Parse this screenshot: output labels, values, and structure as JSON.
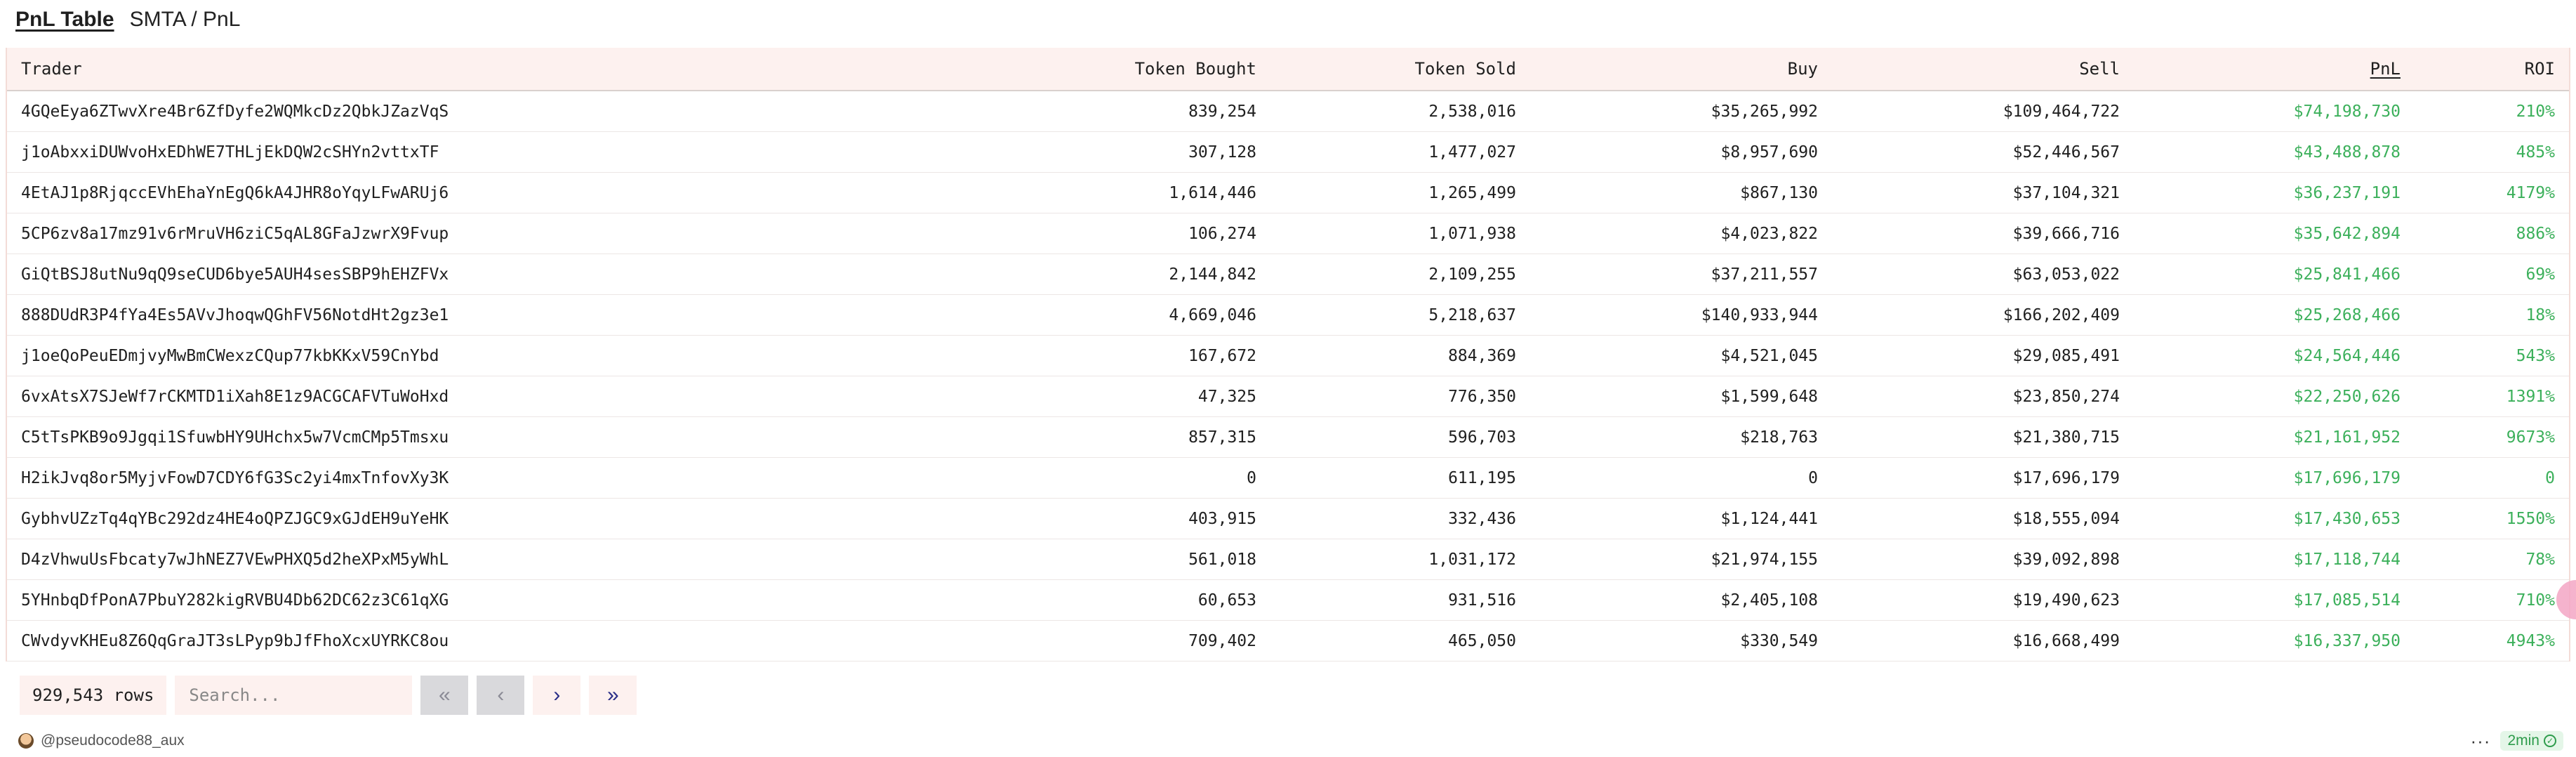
{
  "header": {
    "title": "PnL Table",
    "breadcrumb": "SMTA / PnL"
  },
  "table": {
    "columns": [
      "Trader",
      "Token Bought",
      "Token Sold",
      "Buy",
      "Sell",
      "PnL",
      "ROI"
    ],
    "rows": [
      [
        "4GQeEya6ZTwvXre4Br6ZfDyfe2WQMkcDz2QbkJZazVqS",
        "839,254",
        "2,538,016",
        "$35,265,992",
        "$109,464,722",
        "$74,198,730",
        "210%"
      ],
      [
        "j1oAbxxiDUWvoHxEDhWE7THLjEkDQW2cSHYn2vttxTF",
        "307,128",
        "1,477,027",
        "$8,957,690",
        "$52,446,567",
        "$43,488,878",
        "485%"
      ],
      [
        "4EtAJ1p8RjqccEVhEhaYnEgQ6kA4JHR8oYqyLFwARUj6",
        "1,614,446",
        "1,265,499",
        "$867,130",
        "$37,104,321",
        "$36,237,191",
        "4179%"
      ],
      [
        "5CP6zv8a17mz91v6rMruVH6ziC5qAL8GFaJzwrX9Fvup",
        "106,274",
        "1,071,938",
        "$4,023,822",
        "$39,666,716",
        "$35,642,894",
        "886%"
      ],
      [
        "GiQtBSJ8utNu9qQ9seCUD6bye5AUH4sesSBP9hEHZFVx",
        "2,144,842",
        "2,109,255",
        "$37,211,557",
        "$63,053,022",
        "$25,841,466",
        "69%"
      ],
      [
        "888DUdR3P4fYa4Es5AVvJhoqwQGhFV56NotdHt2gz3e1",
        "4,669,046",
        "5,218,637",
        "$140,933,944",
        "$166,202,409",
        "$25,268,466",
        "18%"
      ],
      [
        "j1oeQoPeuEDmjvyMwBmCWexzCQup77kbKKxV59CnYbd",
        "167,672",
        "884,369",
        "$4,521,045",
        "$29,085,491",
        "$24,564,446",
        "543%"
      ],
      [
        "6vxAtsX7SJeWf7rCKMTD1iXah8E1z9ACGCAFVTuWoHxd",
        "47,325",
        "776,350",
        "$1,599,648",
        "$23,850,274",
        "$22,250,626",
        "1391%"
      ],
      [
        "C5tTsPKB9o9Jgqi1SfuwbHY9UHchx5w7VcmCMp5Tmsxu",
        "857,315",
        "596,703",
        "$218,763",
        "$21,380,715",
        "$21,161,952",
        "9673%"
      ],
      [
        "H2ikJvq8or5MyjvFowD7CDY6fG3Sc2yi4mxTnfovXy3K",
        "0",
        "611,195",
        "0",
        "$17,696,179",
        "$17,696,179",
        "0"
      ],
      [
        "GybhvUZzTq4qYBc292dz4HE4oQPZJGC9xGJdEH9uYeHK",
        "403,915",
        "332,436",
        "$1,124,441",
        "$18,555,094",
        "$17,430,653",
        "1550%"
      ],
      [
        "D4zVhwuUsFbcaty7wJhNEZ7VEwPHXQ5d2heXPxM5yWhL",
        "561,018",
        "1,031,172",
        "$21,974,155",
        "$39,092,898",
        "$17,118,744",
        "78%"
      ],
      [
        "5YHnbqDfPonA7PbuY282kigRVBU4Db62DC62z3C61qXG",
        "60,653",
        "931,516",
        "$2,405,108",
        "$19,490,623",
        "$17,085,514",
        "710%"
      ],
      [
        "CWvdyvKHEu8Z6QqGraJT3sLPyp9bJfFhoXcxUYRKC8ou",
        "709,402",
        "465,050",
        "$330,549",
        "$16,668,499",
        "$16,337,950",
        "4943%"
      ]
    ]
  },
  "footer": {
    "rows_count": "929,543 rows",
    "search_placeholder": "Search...",
    "pagination": {
      "first": "«",
      "prev": "‹",
      "next": "›",
      "last": "»"
    }
  },
  "bottom": {
    "user": "@pseudocode88_aux",
    "more": "···",
    "refresh_badge": "2min"
  },
  "colors": {
    "header_bg": "#fdf1ef",
    "positive": "#3cb05b",
    "pager_active": "#2a2e88",
    "pager_disabled": "#d9d9dc"
  },
  "icons": {
    "avatar": "avatar-icon",
    "more": "more-dots-icon",
    "badge": "check-circle-icon"
  }
}
